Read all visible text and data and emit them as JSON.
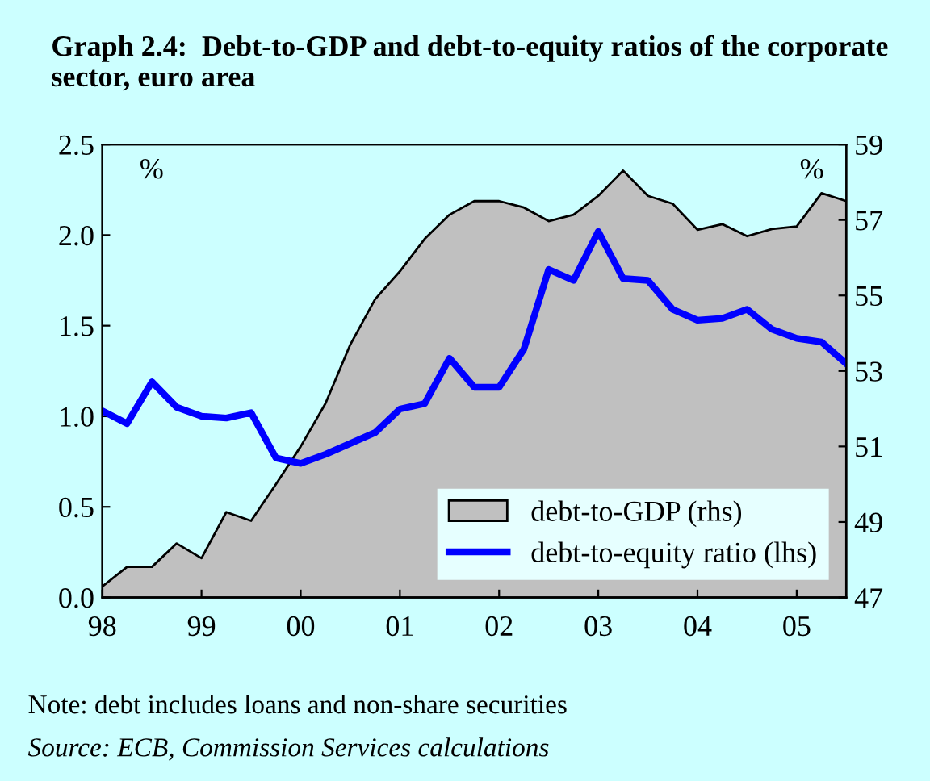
{
  "chart_data": {
    "type": "line",
    "title": "Graph 2.4:  Debt-to-GDP and debt-to-equity ratios of the corporate sector, euro area",
    "ylabel": "%",
    "y2label": "%",
    "x": [
      1998,
      1998.25,
      1998.5,
      1998.75,
      1999,
      1999.25,
      1999.5,
      1999.75,
      2000,
      2000.25,
      2000.5,
      2000.75,
      2001,
      2001.25,
      2001.5,
      2001.75,
      2002,
      2002.25,
      2002.5,
      2002.75,
      2003,
      2003.25,
      2003.5,
      2003.75,
      2004,
      2004.25,
      2004.5,
      2004.75,
      2005,
      2005.25,
      2005.5
    ],
    "series": [
      {
        "name": "debt-to-GDP (rhs)",
        "type": "area",
        "axis": "y2",
        "color": "#c0c0c0",
        "values": [
          47.29,
          47.81,
          47.81,
          48.43,
          48.04,
          49.26,
          49.03,
          50.0,
          51.0,
          52.14,
          53.7,
          54.9,
          55.64,
          56.5,
          57.14,
          57.5,
          57.5,
          57.33,
          56.97,
          57.14,
          57.64,
          58.31,
          57.64,
          57.43,
          56.74,
          56.89,
          56.57,
          56.76,
          56.83,
          57.71,
          57.5
        ]
      },
      {
        "name": "debt-to-equity ratio (lhs)",
        "color": "#0000ff",
        "values": [
          1.03,
          0.96,
          1.19,
          1.05,
          1.0,
          0.99,
          1.02,
          0.77,
          0.74,
          0.79,
          0.85,
          0.91,
          1.04,
          1.07,
          1.32,
          1.16,
          1.16,
          1.37,
          1.81,
          1.75,
          2.02,
          1.76,
          1.75,
          1.59,
          1.53,
          1.54,
          1.59,
          1.48,
          1.43,
          1.41,
          1.29
        ]
      }
    ],
    "xlim": [
      1998,
      2005.5
    ],
    "xticks": [
      {
        "value": 1998,
        "label": "98"
      },
      {
        "value": 1999,
        "label": "99"
      },
      {
        "value": 2000,
        "label": "00"
      },
      {
        "value": 2001,
        "label": "01"
      },
      {
        "value": 2002,
        "label": "02"
      },
      {
        "value": 2003,
        "label": "03"
      },
      {
        "value": 2004,
        "label": "04"
      },
      {
        "value": 2005,
        "label": "05"
      }
    ],
    "ylim": [
      0,
      2.5
    ],
    "yticks": [
      {
        "value": 0,
        "label": "0.0"
      },
      {
        "value": 0.5,
        "label": "0.5"
      },
      {
        "value": 1,
        "label": "1.0"
      },
      {
        "value": 1.5,
        "label": "1.5"
      },
      {
        "value": 2,
        "label": "2.0"
      },
      {
        "value": 2.5,
        "label": "2.5"
      }
    ],
    "y2lim": [
      47,
      59
    ],
    "y2ticks": [
      47,
      49,
      51,
      53,
      55,
      57,
      59
    ],
    "grid": false,
    "legend": "bottom right",
    "annotations": [
      "Note: debt includes loans and non-share securities",
      "Source: ECB, Commission Services calculations"
    ]
  }
}
